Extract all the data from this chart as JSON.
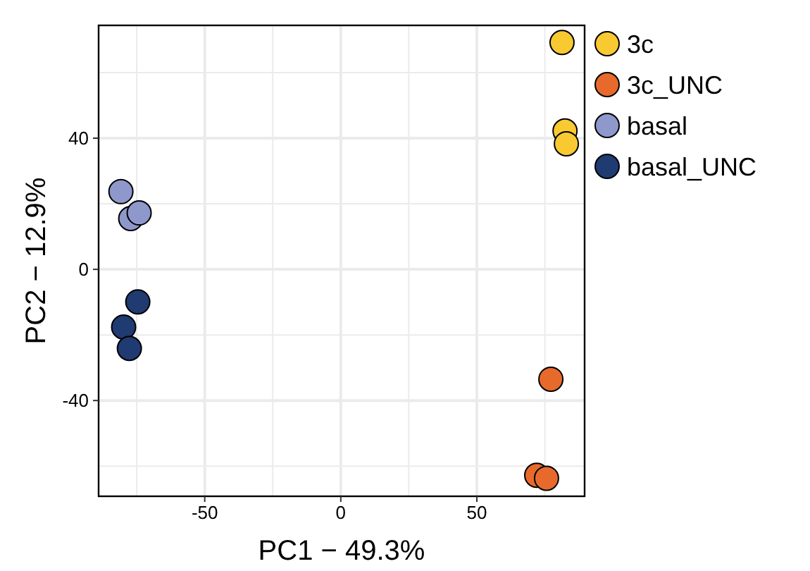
{
  "chart_data": {
    "type": "scatter",
    "xlabel": "PC1 − 49.3%",
    "ylabel": "PC2 − 12.9%",
    "xlim": [
      -89,
      89.6
    ],
    "ylim": [
      -69.2,
      74.4
    ],
    "xticks": [
      {
        "value": -75,
        "label": null
      },
      -50,
      {
        "value": -25,
        "label": null
      },
      0,
      {
        "value": 25,
        "label": null
      },
      50,
      {
        "value": 75,
        "label": null
      }
    ],
    "yticks": [
      {
        "value": -60,
        "label": null
      },
      -40,
      {
        "value": -20,
        "label": null
      },
      0,
      {
        "value": 20,
        "label": null
      },
      40,
      {
        "value": 60,
        "label": null
      }
    ],
    "grid": true,
    "legend": "right",
    "marker": "circle",
    "series": [
      {
        "name": "3c",
        "color": "#f9c932",
        "x": [
          81.3,
          82.4,
          82.9
        ],
        "values": [
          69.2,
          42.2,
          38.3
        ]
      },
      {
        "name": "3c_UNC",
        "color": "#e76a2c",
        "x": [
          77.2,
          72,
          75.6
        ],
        "values": [
          -33.5,
          -62.8,
          -63.7
        ]
      },
      {
        "name": "basal",
        "color": "#8e98cb",
        "x": [
          -80.8,
          -77.2,
          -74.1
        ],
        "values": [
          23.7,
          15.5,
          17.2
        ]
      },
      {
        "name": "basal_UNC",
        "color": "#203a72",
        "x": [
          -74.6,
          -79.8,
          -77.7
        ],
        "values": [
          -9.9,
          -17.6,
          -24.1
        ]
      }
    ]
  }
}
